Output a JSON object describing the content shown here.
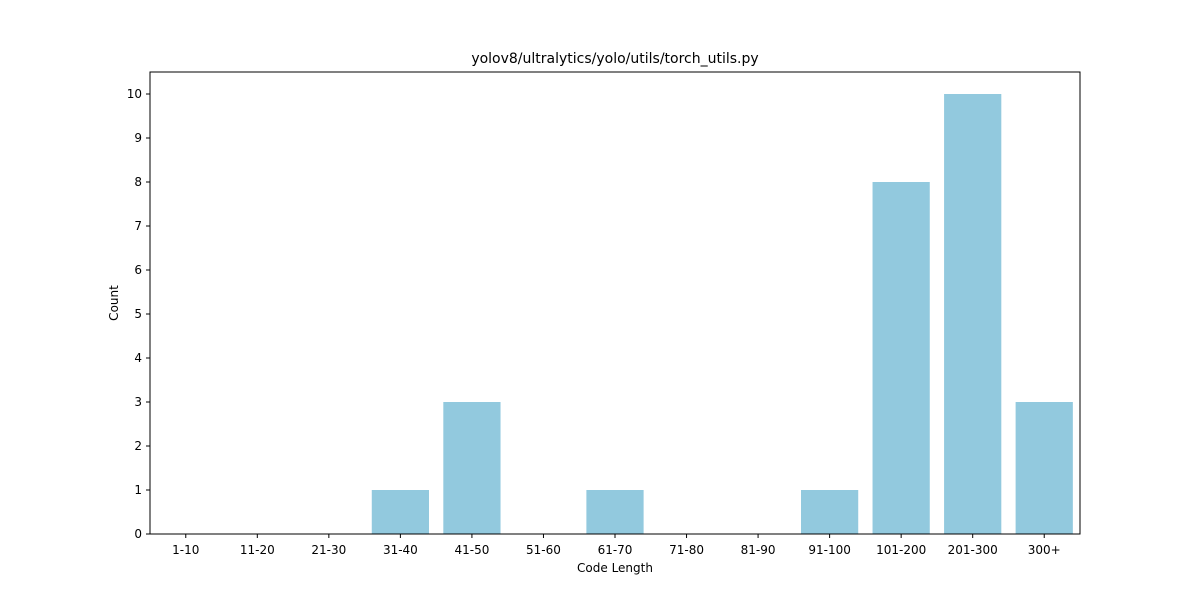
{
  "chart_data": {
    "type": "bar",
    "title": "yolov8/ultralytics/yolo/utils/torch_utils.py",
    "xlabel": "Code Length",
    "ylabel": "Count",
    "categories": [
      "1-10",
      "11-20",
      "21-30",
      "31-40",
      "41-50",
      "51-60",
      "61-70",
      "71-80",
      "81-90",
      "91-100",
      "101-200",
      "201-300",
      "300+"
    ],
    "values": [
      0,
      0,
      0,
      1,
      3,
      0,
      1,
      0,
      0,
      1,
      8,
      10,
      3
    ],
    "ylim": [
      0,
      10.5
    ],
    "yticks": [
      0,
      1,
      2,
      3,
      4,
      5,
      6,
      7,
      8,
      9,
      10
    ],
    "bar_color": "#92c9de",
    "grid": false,
    "legend": "none"
  }
}
